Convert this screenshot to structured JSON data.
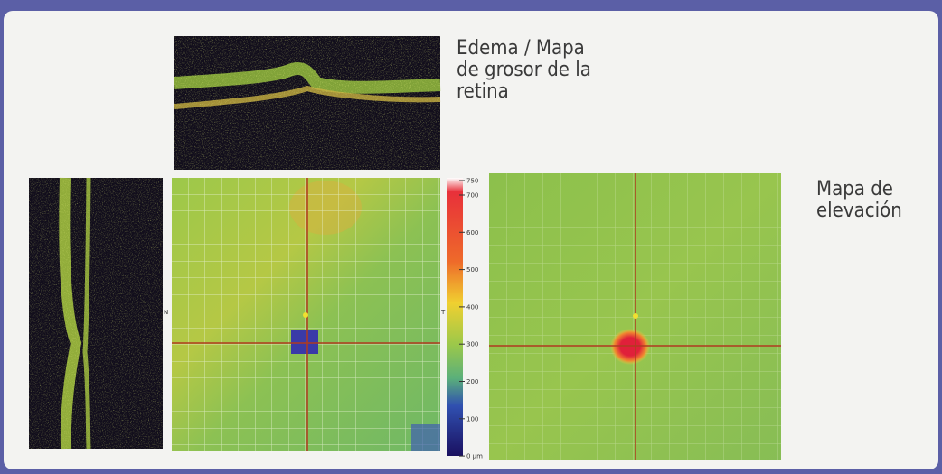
{
  "figure": {
    "thickness_caption": [
      "Edema / Mapa",
      "de grosor de la",
      "retina"
    ],
    "elevation_caption": [
      "Mapa de",
      "elevación"
    ],
    "nasal_label": "N",
    "temporal_label": "T",
    "scale_labels": [
      "750",
      "700",
      "600",
      "500",
      "400",
      "300",
      "200",
      "100",
      "0 µm"
    ]
  }
}
